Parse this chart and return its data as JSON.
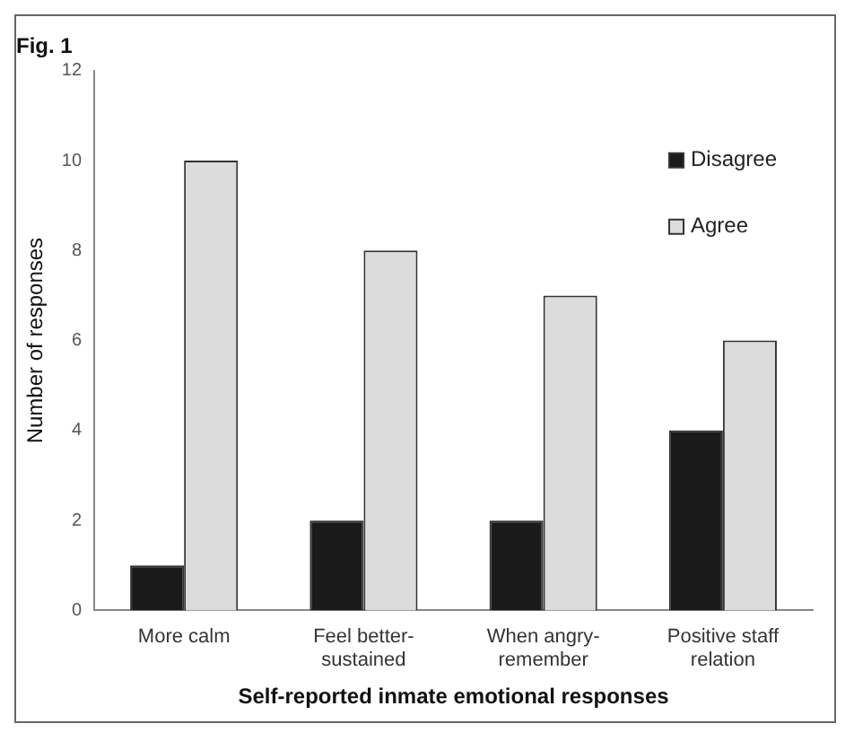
{
  "chart_data": {
    "type": "bar",
    "title": "Fig. 1",
    "xlabel": "Self-reported inmate emotional responses",
    "ylabel": "Number of responses",
    "categories": [
      "More calm",
      "Feel better-sustained",
      "When angry-remember",
      "Positive staff relation"
    ],
    "series": [
      {
        "name": "Disagree",
        "color": "#1a1a1a",
        "values": [
          1,
          2,
          2,
          4
        ]
      },
      {
        "name": "Agree",
        "color": "#dcdcdc",
        "values": [
          10,
          8,
          7,
          6
        ]
      }
    ],
    "ylim": [
      0,
      12
    ],
    "yticks": [
      0,
      2,
      4,
      6,
      8,
      10,
      12
    ],
    "grid": false,
    "legend": "top right"
  }
}
